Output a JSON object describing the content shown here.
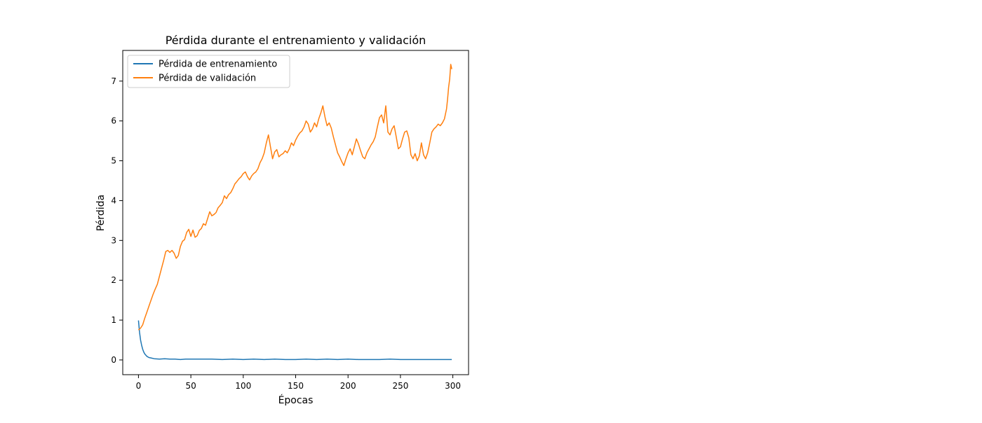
{
  "chart_data": {
    "type": "line",
    "title": "Pérdida durante el entrenamiento y validación",
    "xlabel": "Épocas",
    "ylabel": "Pérdida",
    "xlim": [
      -15,
      315
    ],
    "ylim": [
      -0.37,
      7.77
    ],
    "xticks": [
      0,
      50,
      100,
      150,
      200,
      250,
      300
    ],
    "yticks": [
      0,
      1,
      2,
      3,
      4,
      5,
      6,
      7
    ],
    "grid": false,
    "legend_position": "top-left",
    "series": [
      {
        "name": "Pérdida de entrenamiento",
        "color": "#1f77b4",
        "x": [
          0,
          1,
          2,
          3,
          4,
          5,
          6,
          7,
          8,
          10,
          12,
          15,
          20,
          25,
          30,
          35,
          40,
          45,
          50,
          60,
          70,
          80,
          90,
          100,
          110,
          120,
          130,
          140,
          150,
          160,
          170,
          180,
          190,
          200,
          210,
          220,
          230,
          240,
          250,
          260,
          270,
          280,
          290,
          299
        ],
        "y": [
          0.99,
          0.7,
          0.5,
          0.37,
          0.27,
          0.2,
          0.15,
          0.12,
          0.09,
          0.06,
          0.05,
          0.03,
          0.02,
          0.03,
          0.02,
          0.02,
          0.01,
          0.02,
          0.02,
          0.02,
          0.02,
          0.01,
          0.02,
          0.01,
          0.02,
          0.01,
          0.02,
          0.01,
          0.01,
          0.02,
          0.01,
          0.02,
          0.01,
          0.02,
          0.01,
          0.01,
          0.01,
          0.02,
          0.01,
          0.01,
          0.01,
          0.01,
          0.01,
          0.01
        ]
      },
      {
        "name": "Pérdida de validación",
        "color": "#ff7f0e",
        "x": [
          0,
          2,
          4,
          6,
          8,
          10,
          12,
          14,
          16,
          18,
          20,
          22,
          24,
          26,
          28,
          30,
          32,
          34,
          36,
          38,
          40,
          42,
          44,
          46,
          48,
          50,
          52,
          54,
          56,
          58,
          60,
          62,
          64,
          66,
          68,
          70,
          72,
          74,
          76,
          78,
          80,
          82,
          84,
          86,
          88,
          90,
          92,
          94,
          96,
          98,
          100,
          102,
          104,
          106,
          108,
          110,
          112,
          114,
          116,
          118,
          120,
          122,
          124,
          126,
          128,
          130,
          132,
          134,
          136,
          138,
          140,
          142,
          144,
          146,
          148,
          150,
          152,
          154,
          156,
          158,
          160,
          162,
          164,
          166,
          168,
          170,
          172,
          174,
          176,
          178,
          180,
          182,
          184,
          186,
          188,
          190,
          192,
          194,
          196,
          198,
          200,
          202,
          204,
          206,
          208,
          210,
          212,
          214,
          216,
          218,
          220,
          222,
          224,
          226,
          228,
          230,
          232,
          234,
          236,
          238,
          240,
          242,
          244,
          246,
          248,
          250,
          252,
          254,
          256,
          258,
          260,
          262,
          264,
          266,
          268,
          270,
          272,
          274,
          276,
          278,
          280,
          282,
          284,
          286,
          288,
          290,
          292,
          294,
          295,
          296,
          297,
          298,
          299
        ],
        "y": [
          0.75,
          0.8,
          0.88,
          1.05,
          1.2,
          1.35,
          1.5,
          1.65,
          1.78,
          1.9,
          2.1,
          2.3,
          2.5,
          2.72,
          2.75,
          2.7,
          2.75,
          2.68,
          2.55,
          2.62,
          2.85,
          2.98,
          3.02,
          3.2,
          3.28,
          3.1,
          3.26,
          3.08,
          3.12,
          3.25,
          3.3,
          3.42,
          3.38,
          3.55,
          3.72,
          3.62,
          3.65,
          3.7,
          3.82,
          3.88,
          3.95,
          4.12,
          4.05,
          4.15,
          4.2,
          4.3,
          4.42,
          4.48,
          4.55,
          4.6,
          4.68,
          4.72,
          4.6,
          4.52,
          4.62,
          4.68,
          4.72,
          4.8,
          4.95,
          5.05,
          5.2,
          5.45,
          5.65,
          5.35,
          5.05,
          5.22,
          5.28,
          5.1,
          5.15,
          5.18,
          5.25,
          5.2,
          5.3,
          5.45,
          5.38,
          5.52,
          5.62,
          5.7,
          5.75,
          5.85,
          6.0,
          5.92,
          5.72,
          5.8,
          5.95,
          5.85,
          6.05,
          6.2,
          6.38,
          6.1,
          5.88,
          5.95,
          5.82,
          5.6,
          5.4,
          5.2,
          5.1,
          4.98,
          4.88,
          5.05,
          5.2,
          5.3,
          5.15,
          5.35,
          5.55,
          5.42,
          5.25,
          5.1,
          5.05,
          5.2,
          5.3,
          5.4,
          5.48,
          5.6,
          5.85,
          6.08,
          6.15,
          5.95,
          6.38,
          5.72,
          5.65,
          5.8,
          5.88,
          5.6,
          5.3,
          5.35,
          5.55,
          5.72,
          5.75,
          5.58,
          5.15,
          5.05,
          5.18,
          5.0,
          5.12,
          5.45,
          5.15,
          5.05,
          5.2,
          5.45,
          5.72,
          5.8,
          5.85,
          5.92,
          5.88,
          5.95,
          6.05,
          6.3,
          6.55,
          6.85,
          7.05,
          7.42,
          7.3
        ]
      }
    ]
  }
}
